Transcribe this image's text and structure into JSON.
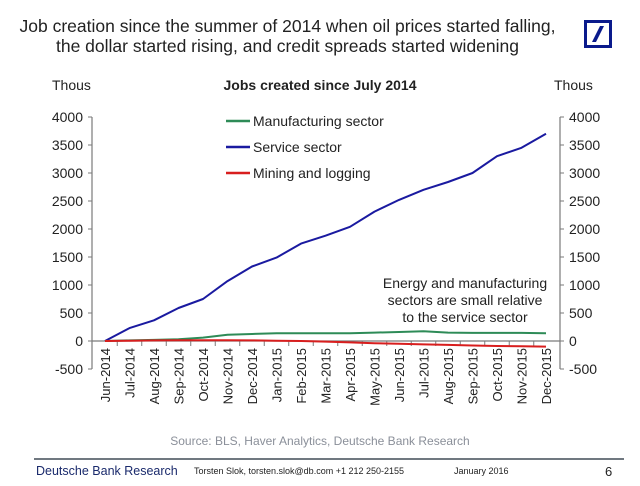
{
  "slide": {
    "title_line1": "Job creation since the summer of 2014 when oil prices started falling,",
    "title_line2": "the dollar started rising, and credit spreads started widening",
    "logo": "deutsche-bank-slash-logo",
    "source": "Source: BLS, Haver Analytics, Deutsche Bank Research",
    "footer": {
      "brand": "Deutsche Bank Research",
      "contact": "Torsten Slok, torsten.slok@db.com  +1 212 250-2155",
      "date": "January 2016",
      "page": "6"
    }
  },
  "chart_data": {
    "type": "line",
    "title": "Jobs created since July 2014",
    "ylabel_left": "Thous",
    "ylabel_right": "Thous",
    "xlabel": "",
    "ylim": [
      -500,
      4000
    ],
    "yticks": [
      4000,
      3500,
      3000,
      2500,
      2000,
      1500,
      1000,
      500,
      0,
      -500
    ],
    "grid": false,
    "legend_position": "top-center",
    "categories": [
      "Jun-2014",
      "Jul-2014",
      "Aug-2014",
      "Sep-2014",
      "Oct-2014",
      "Nov-2014",
      "Dec-2014",
      "Jan-2015",
      "Feb-2015",
      "Mar-2015",
      "Apr-2015",
      "May-2015",
      "Jun-2015",
      "Jul-2015",
      "Aug-2015",
      "Sep-2015",
      "Oct-2015",
      "Nov-2015",
      "Dec-2015"
    ],
    "series": [
      {
        "name": "Manufacturing sector",
        "color": "#2e8b57",
        "values": [
          0,
          10,
          20,
          30,
          60,
          110,
          125,
          140,
          140,
          140,
          140,
          150,
          160,
          175,
          150,
          145,
          145,
          145,
          140
        ]
      },
      {
        "name": "Service sector",
        "color": "#1a1aa0",
        "values": [
          0,
          230,
          370,
          590,
          750,
          1070,
          1330,
          1490,
          1740,
          1880,
          2040,
          2310,
          2520,
          2700,
          2840,
          3000,
          3300,
          3450,
          3700
        ]
      },
      {
        "name": "Mining and logging",
        "color": "#d81e1e",
        "values": [
          0,
          5,
          10,
          15,
          15,
          15,
          10,
          5,
          0,
          -10,
          -25,
          -40,
          -50,
          -60,
          -70,
          -80,
          -90,
          -95,
          -100
        ]
      }
    ],
    "annotation": {
      "line1": "Energy and manufacturing",
      "line2": "sectors are small relative",
      "line3": "to the service sector"
    }
  }
}
